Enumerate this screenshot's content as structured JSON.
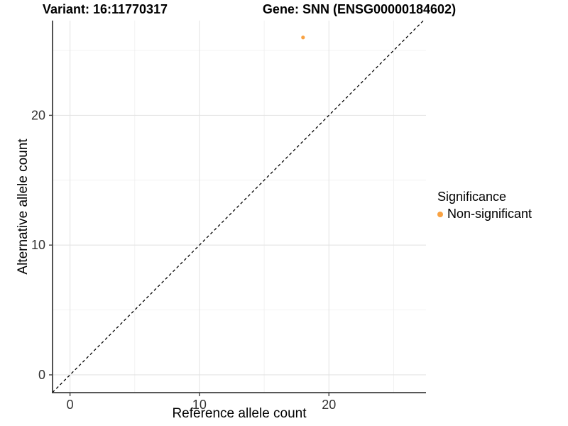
{
  "chart_data": {
    "type": "scatter",
    "title_left": "Variant: 16:11770317",
    "title_right": "Gene: SNN (ENSG00000184602)",
    "xlabel": "Reference allele count",
    "ylabel": "Alternative allele count",
    "xlim": [
      -1.35,
      27.5
    ],
    "ylim": [
      -1.37,
      27.3
    ],
    "x_ticks": [
      0,
      10,
      20
    ],
    "y_ticks": [
      0,
      10,
      20
    ],
    "x_minor_gridlines": [
      5,
      15,
      25
    ],
    "y_minor_gridlines": [
      5,
      15,
      25
    ],
    "grid": true,
    "series": [
      {
        "name": "Non-significant",
        "color": "#F9A242",
        "points": [
          {
            "x": 18,
            "y": 26
          }
        ]
      }
    ],
    "reference_line": {
      "equation": "y = x",
      "style": "dashed",
      "color": "#000000"
    },
    "legend": {
      "position": "right",
      "title": "Significance",
      "entries": [
        {
          "label": "Non-significant",
          "color": "#F9A242",
          "marker": "circle"
        }
      ]
    }
  },
  "colors": {
    "background": "#FFFFFF",
    "axis_line": "#404040",
    "grid_major": "#E4E4E4",
    "grid_minor": "#F0F0F0",
    "tick_text": "#333333",
    "title_text": "#000000"
  }
}
